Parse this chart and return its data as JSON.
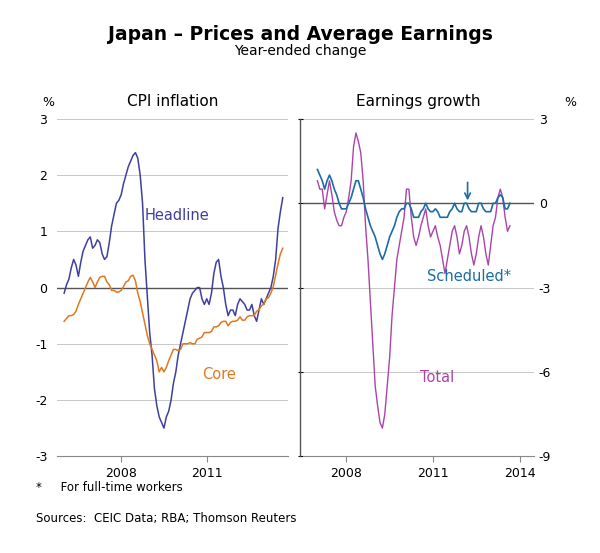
{
  "title": "Japan – Prices and Average Earnings",
  "subtitle": "Year-ended change",
  "left_panel_title": "CPI inflation",
  "right_panel_title": "Earnings growth",
  "footnote": "*     For full-time workers",
  "sources": "Sources:  CEIC Data; RBA; Thomson Reuters",
  "headline_color": "#3F3FA0",
  "core_color": "#E07820",
  "scheduled_color": "#1B6CA8",
  "total_color": "#AA44AA",
  "divider_color": "#555555",
  "zero_line_color": "#555555",
  "grid_color": "#C8C8C8",
  "background_color": "#FFFFFF",
  "headline_label": "Headline",
  "core_label": "Core",
  "scheduled_label": "Scheduled*",
  "total_label": "Total",
  "left_ylim": [
    -3,
    3
  ],
  "left_yticks": [
    -3,
    -2,
    -1,
    0,
    1,
    2,
    3
  ],
  "right_ylim": [
    -9,
    3
  ],
  "right_yticks": [
    -9,
    -6,
    -3,
    0,
    3
  ],
  "right_yticklabels": [
    "-9",
    "-6",
    "-3",
    "0",
    "3"
  ],
  "left_xticks": [
    2008,
    2011
  ],
  "right_xticks": [
    2008,
    2011,
    2014
  ]
}
